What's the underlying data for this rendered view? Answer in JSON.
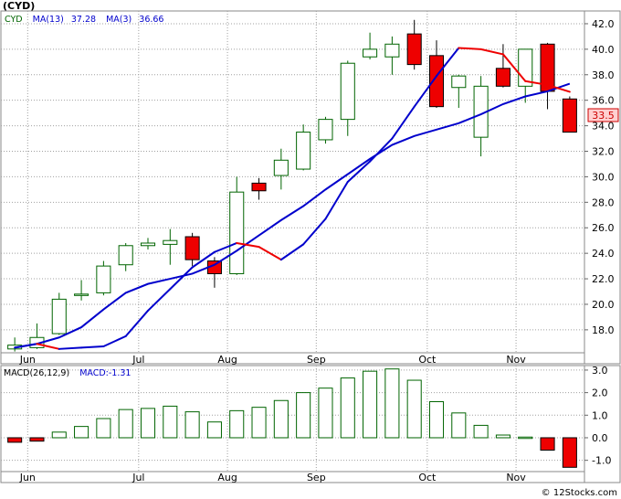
{
  "title": "(CYD)",
  "watermark": "© 12Stocks.com",
  "legend": {
    "ticker": "CYD",
    "ma13_label": "MA(13)",
    "ma13_value": "37.28",
    "ma3_label": "MA(3)",
    "ma3_value": "36.66"
  },
  "last_price_label": "33.5",
  "macd_legend": {
    "params": "MACD(26,12,9)",
    "value_label": "MACD:-1.31"
  },
  "colors": {
    "up": "#006400",
    "down": "#ee0000",
    "ma_long": "#0000cc",
    "ma_short": "#ee0000",
    "grid": "#a0a0a0",
    "panel_border": "#888888",
    "ticker_text": "#006400",
    "legend_text": "#0000cc",
    "price_box_fill": "#ffd0d0",
    "price_box_text": "#cc0000"
  },
  "chart_data": [
    {
      "type": "candlestick",
      "x_tick_labels": [
        "Jun",
        "Jul",
        "Aug",
        "Sep",
        "Oct",
        "Nov"
      ],
      "x_tick_index": [
        1,
        6,
        10,
        14,
        19,
        23
      ],
      "y_tick_labels": [
        "18.0",
        "20.0",
        "22.0",
        "24.0",
        "26.0",
        "28.0",
        "30.0",
        "32.0",
        "34.0",
        "36.0",
        "38.0",
        "40.0",
        "42.0"
      ],
      "ylim": [
        16.2,
        43.0
      ],
      "grid": true,
      "candles": [
        {
          "o": 16.5,
          "h": 17.4,
          "l": 16.3,
          "c": 16.8
        },
        {
          "o": 16.6,
          "h": 18.5,
          "l": 16.5,
          "c": 17.4
        },
        {
          "o": 17.7,
          "h": 20.9,
          "l": 17.6,
          "c": 20.4
        },
        {
          "o": 20.7,
          "h": 21.9,
          "l": 20.3,
          "c": 20.8
        },
        {
          "o": 20.9,
          "h": 23.4,
          "l": 20.7,
          "c": 23.0
        },
        {
          "o": 23.1,
          "h": 24.8,
          "l": 22.6,
          "c": 24.6
        },
        {
          "o": 24.6,
          "h": 25.2,
          "l": 24.3,
          "c": 24.8
        },
        {
          "o": 24.7,
          "h": 25.9,
          "l": 23.1,
          "c": 25.0
        },
        {
          "o": 25.3,
          "h": 25.6,
          "l": 23.0,
          "c": 23.5
        },
        {
          "o": 23.4,
          "h": 23.7,
          "l": 21.3,
          "c": 22.4
        },
        {
          "o": 22.4,
          "h": 30.0,
          "l": 22.3,
          "c": 28.8
        },
        {
          "o": 29.5,
          "h": 29.9,
          "l": 28.2,
          "c": 28.9
        },
        {
          "o": 30.1,
          "h": 32.2,
          "l": 29.0,
          "c": 31.3
        },
        {
          "o": 30.6,
          "h": 34.1,
          "l": 30.5,
          "c": 33.5
        },
        {
          "o": 32.9,
          "h": 34.7,
          "l": 32.6,
          "c": 34.5
        },
        {
          "o": 34.5,
          "h": 39.1,
          "l": 33.2,
          "c": 38.9
        },
        {
          "o": 39.4,
          "h": 41.3,
          "l": 39.2,
          "c": 40.0
        },
        {
          "o": 39.4,
          "h": 41.0,
          "l": 38.0,
          "c": 40.4
        },
        {
          "o": 41.2,
          "h": 42.3,
          "l": 38.4,
          "c": 38.8
        },
        {
          "o": 39.5,
          "h": 40.7,
          "l": 35.4,
          "c": 35.5
        },
        {
          "o": 37.0,
          "h": 38.0,
          "l": 35.4,
          "c": 37.9
        },
        {
          "o": 33.1,
          "h": 37.9,
          "l": 31.6,
          "c": 37.1
        },
        {
          "o": 38.5,
          "h": 40.4,
          "l": 37.0,
          "c": 37.1
        },
        {
          "o": 37.1,
          "h": 40.0,
          "l": 35.8,
          "c": 40.0
        },
        {
          "o": 40.4,
          "h": 40.5,
          "l": 35.3,
          "c": 36.7
        },
        {
          "o": 36.1,
          "h": 36.3,
          "l": 33.5,
          "c": 33.5
        }
      ],
      "series": [
        {
          "name": "MA(13)",
          "values": [
            16.6,
            16.9,
            17.4,
            18.2,
            19.6,
            20.9,
            21.6,
            22.0,
            22.4,
            23.1,
            24.2,
            25.4,
            26.6,
            27.7,
            29.0,
            30.2,
            31.4,
            32.5,
            33.2,
            33.7,
            34.2,
            34.9,
            35.7,
            36.3,
            36.7,
            37.3
          ]
        },
        {
          "name": "MA(3)",
          "values": [
            16.6,
            16.9,
            16.5,
            16.6,
            16.7,
            17.5,
            19.5,
            21.2,
            22.9,
            24.1,
            24.8,
            24.5,
            23.5,
            24.7,
            26.7,
            29.6,
            31.2,
            33.0,
            35.5,
            37.9,
            40.1,
            40.0,
            39.6,
            37.5,
            37.2,
            36.66
          ]
        }
      ]
    },
    {
      "type": "bar",
      "title": "MACD(26,12,9)",
      "y_tick_labels": [
        "-1.0",
        "0.0",
        "1.0",
        "2.0",
        "3.0"
      ],
      "ylim": [
        -1.5,
        3.2
      ],
      "values": [
        -0.2,
        -0.15,
        0.25,
        0.5,
        0.85,
        1.25,
        1.3,
        1.4,
        1.15,
        0.7,
        1.2,
        1.35,
        1.65,
        2.0,
        2.2,
        2.65,
        2.95,
        3.05,
        2.55,
        1.6,
        1.1,
        0.55,
        0.12,
        0.03,
        -0.55,
        -1.31
      ]
    }
  ]
}
